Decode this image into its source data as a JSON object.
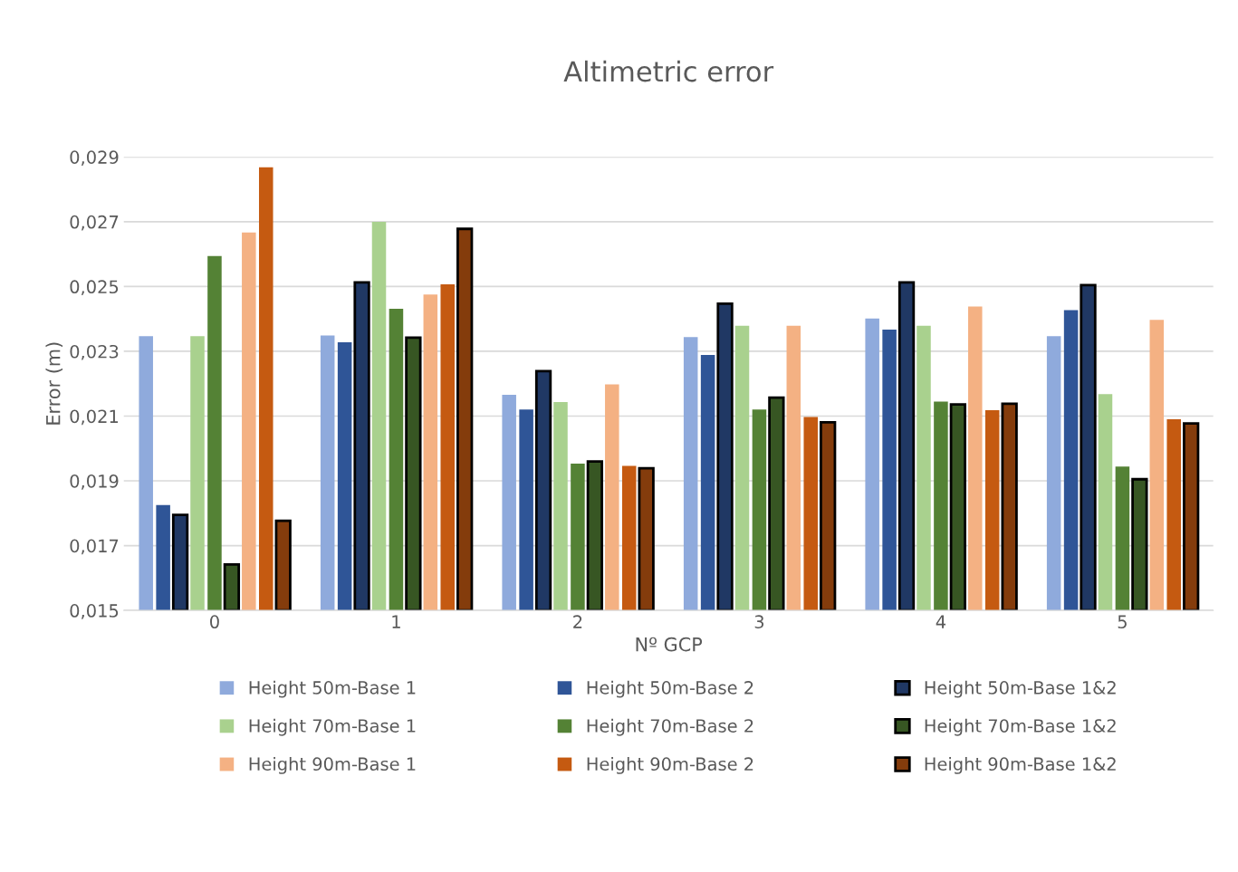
{
  "chart_data": {
    "type": "bar",
    "title": "Altimetric error",
    "xlabel": "Nº GCP",
    "ylabel": "Error (m)",
    "categories": [
      "0",
      "1",
      "2",
      "3",
      "4",
      "5"
    ],
    "series": [
      {
        "name": "Height 50m-Base 1",
        "color": "#8faadc",
        "values": [
          0.02347,
          0.02349,
          0.02166,
          0.02344,
          0.02401,
          0.02347
        ]
      },
      {
        "name": "Height 50m-Base 2",
        "color": "#2f5597",
        "values": [
          0.01825,
          0.02328,
          0.0212,
          0.02289,
          0.02367,
          0.02427
        ]
      },
      {
        "name": "Height 50m-Base 1&2",
        "color": "#203864",
        "values": [
          0.01795,
          0.02513,
          0.02239,
          0.02447,
          0.02513,
          0.02504
        ]
      },
      {
        "name": "Height 70m-Base 1",
        "color": "#a9d18e",
        "values": [
          0.02347,
          0.027,
          0.02143,
          0.02379,
          0.02379,
          0.02168
        ]
      },
      {
        "name": "Height 70m-Base 2",
        "color": "#548235",
        "values": [
          0.02594,
          0.02431,
          0.01953,
          0.0212,
          0.02145,
          0.01944
        ]
      },
      {
        "name": "Height 70m-Base 1&2",
        "color": "#375623",
        "values": [
          0.01642,
          0.02342,
          0.0196,
          0.02157,
          0.02136,
          0.01905
        ]
      },
      {
        "name": "Height 90m-Base 1",
        "color": "#f4b183",
        "values": [
          0.02667,
          0.02475,
          0.02198,
          0.02379,
          0.02438,
          0.02397
        ]
      },
      {
        "name": "Height 90m-Base 2",
        "color": "#c55a11",
        "values": [
          0.02868,
          0.02507,
          0.01946,
          0.02097,
          0.02118,
          0.0209
        ]
      },
      {
        "name": "Height 90m-Base 1&2",
        "color": "#843c0c",
        "values": [
          0.01777,
          0.02678,
          0.01939,
          0.02081,
          0.02138,
          0.02077
        ]
      }
    ],
    "ylim": [
      0.015,
      0.029
    ],
    "yticks": [
      {
        "value": 0.015,
        "label": "0,015"
      },
      {
        "value": 0.017,
        "label": "0,017"
      },
      {
        "value": 0.019,
        "label": "0,019"
      },
      {
        "value": 0.021,
        "label": "0,021"
      },
      {
        "value": 0.023,
        "label": "0,023"
      },
      {
        "value": 0.025,
        "label": "0,025"
      },
      {
        "value": 0.027,
        "label": "0,027"
      },
      {
        "value": 0.029,
        "label": "0,029"
      }
    ],
    "grid": "y",
    "legend": "bottom"
  }
}
